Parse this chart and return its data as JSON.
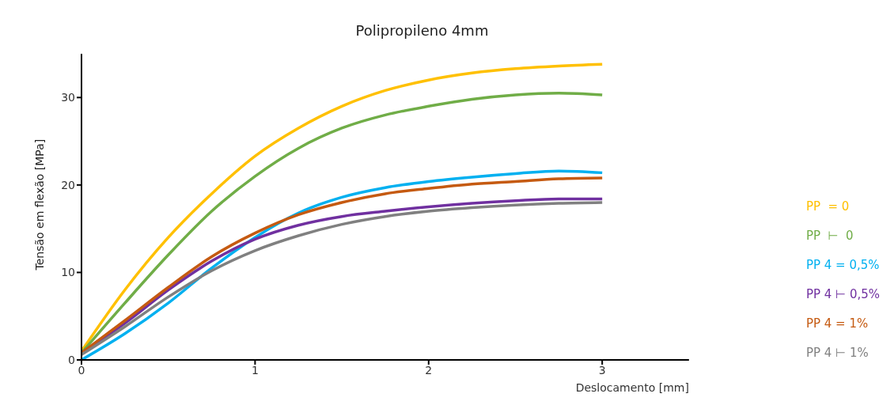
{
  "chart_data": {
    "type": "line",
    "title": "Polipropileno 4mm",
    "xlabel": "Deslocamento [mm]",
    "ylabel": "Tensão em flexão [MPa]",
    "x": [
      0,
      0.25,
      0.5,
      0.75,
      1,
      1.25,
      1.5,
      1.75,
      2,
      2.25,
      2.5,
      2.75,
      3
    ],
    "series": [
      {
        "name": "PP  = 0",
        "color": "#ffc000",
        "values": [
          1,
          8,
          14,
          19,
          23.3,
          26.5,
          29,
          30.8,
          32,
          32.8,
          33.3,
          33.6,
          33.8
        ]
      },
      {
        "name": "PP  ⊢  0",
        "color": "#70ad47",
        "values": [
          0.8,
          6.5,
          12,
          17,
          21,
          24.2,
          26.5,
          28,
          29,
          29.8,
          30.3,
          30.5,
          30.3
        ]
      },
      {
        "name": "PP 4 = 0,5%",
        "color": "#00b0f0",
        "values": [
          0,
          3,
          6.5,
          10.5,
          14,
          16.8,
          18.6,
          19.7,
          20.4,
          20.9,
          21.3,
          21.6,
          21.4
        ]
      },
      {
        "name": "PP 4 ⊢ 0,5%",
        "color": "#7030a0",
        "values": [
          0.8,
          4.2,
          8,
          11.3,
          13.8,
          15.4,
          16.4,
          17,
          17.5,
          17.9,
          18.2,
          18.4,
          18.4
        ]
      },
      {
        "name": "PP 4 = 1%",
        "color": "#c55a11",
        "values": [
          0.8,
          4.5,
          8.3,
          11.8,
          14.5,
          16.6,
          18,
          19,
          19.6,
          20.1,
          20.4,
          20.7,
          20.8
        ]
      },
      {
        "name": "PP 4 ⊢ 1%",
        "color": "#808080",
        "values": [
          0.6,
          3.8,
          7.2,
          10.2,
          12.5,
          14.2,
          15.5,
          16.4,
          17,
          17.4,
          17.7,
          17.9,
          18
        ]
      }
    ],
    "xlim": [
      0,
      3.5
    ],
    "xticks": [
      0,
      1,
      2,
      3
    ],
    "ylim": [
      0,
      35
    ],
    "yticks": [
      0,
      10,
      20,
      30
    ],
    "grid": false,
    "legend": "right",
    "marker": "none",
    "line_style": "solid"
  }
}
